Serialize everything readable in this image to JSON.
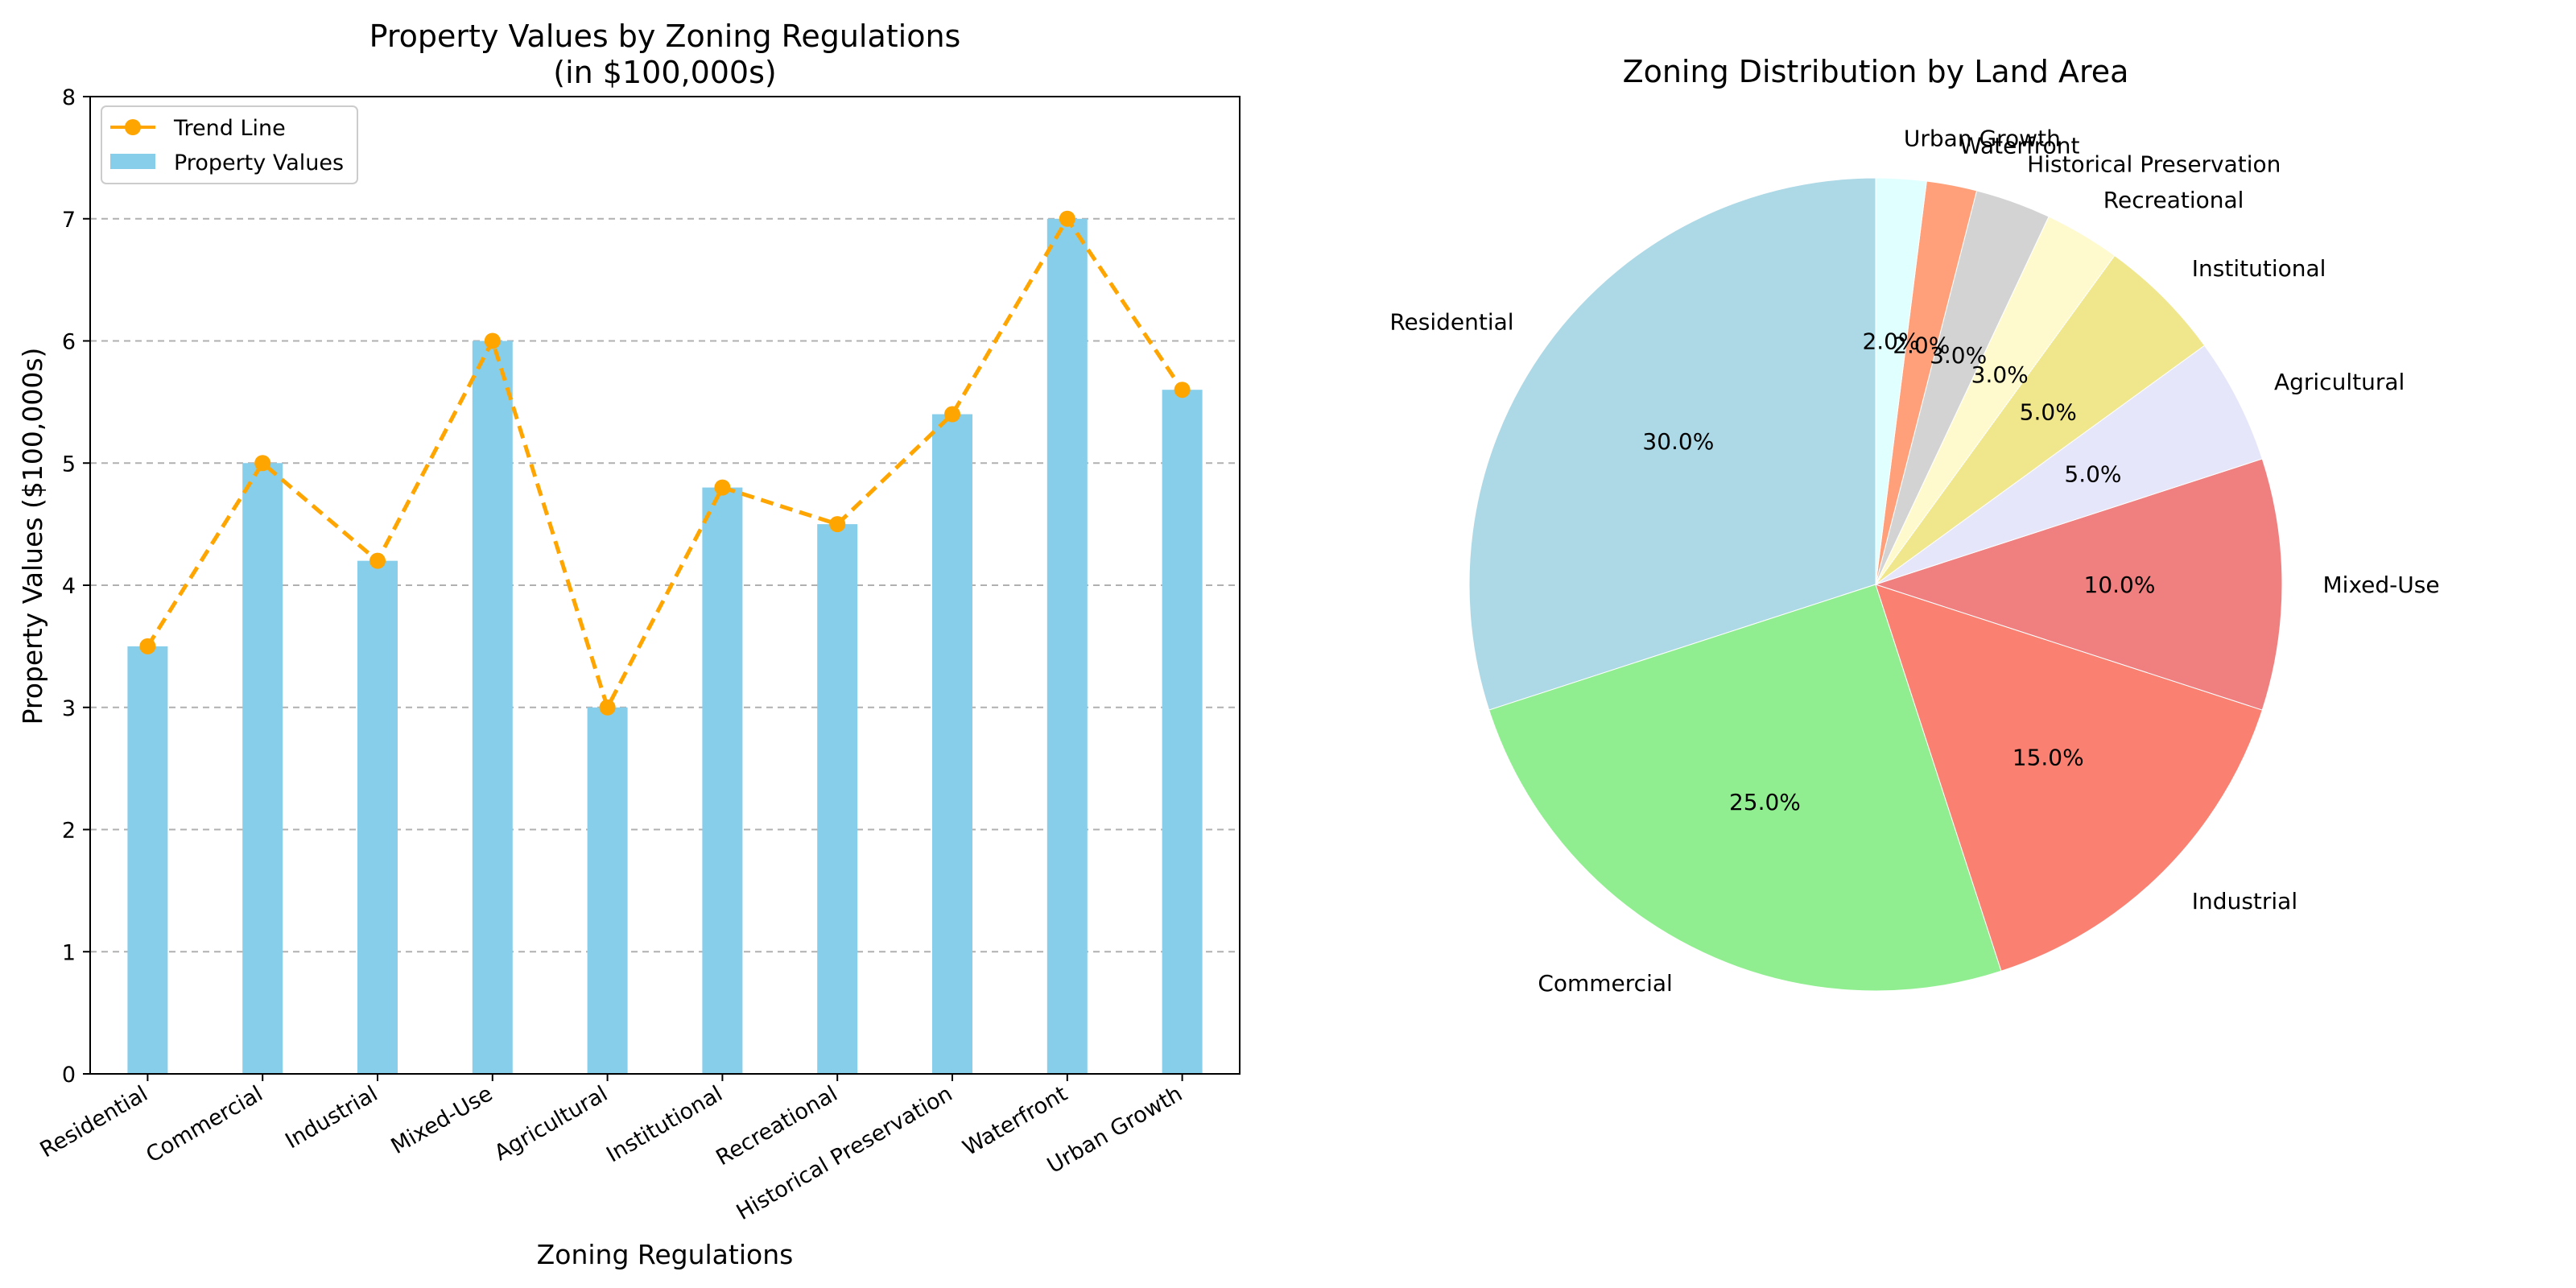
{
  "chart_data": [
    {
      "type": "bar",
      "title": "Property Values by Zoning Regulations",
      "subtitle": "(in $100,000s)",
      "xlabel": "Zoning Regulations",
      "ylabel": "Property Values ($100,000s)",
      "ylim": [
        0,
        8
      ],
      "yticks": [
        "0",
        "1",
        "2",
        "3",
        "4",
        "5",
        "6",
        "7",
        "8"
      ],
      "grid": "y-dashed",
      "legend_position": "top-left",
      "categories": [
        "Residential",
        "Commercial",
        "Industrial",
        "Mixed-Use",
        "Agricultural",
        "Institutional",
        "Recreational",
        "Historical Preservation",
        "Waterfront",
        "Urban Growth"
      ],
      "series": [
        {
          "name": "Trend Line",
          "kind": "line",
          "color": "#ffa500",
          "values": [
            3.5,
            5.0,
            4.2,
            6.0,
            3.0,
            4.8,
            4.5,
            5.4,
            7.0,
            5.6
          ]
        },
        {
          "name": "Property Values",
          "kind": "bar",
          "color": "#87ceeb",
          "values": [
            3.5,
            5.0,
            4.2,
            6.0,
            3.0,
            4.8,
            4.5,
            5.4,
            7.0,
            5.6
          ]
        }
      ]
    },
    {
      "type": "pie",
      "title": "Zoning Distribution by Land Area",
      "categories": [
        "Residential",
        "Commercial",
        "Industrial",
        "Mixed-Use",
        "Agricultural",
        "Institutional",
        "Recreational",
        "Historical Preservation",
        "Waterfront",
        "Urban Growth"
      ],
      "values": [
        30,
        25,
        15,
        10,
        5,
        5,
        3,
        3,
        2,
        2
      ],
      "pct_labels": [
        "30.0%",
        "25.0%",
        "15.0%",
        "10.0%",
        "5.0%",
        "5.0%",
        "3.0%",
        "3.0%",
        "2.0%",
        "2.0%"
      ],
      "colors": [
        "#add8e6",
        "#90ee90",
        "#fa8072",
        "#f08080",
        "#e6e6fa",
        "#f0e68c",
        "#fffacd",
        "#d3d3d3",
        "#ffa07a",
        "#e0ffff"
      ]
    }
  ]
}
